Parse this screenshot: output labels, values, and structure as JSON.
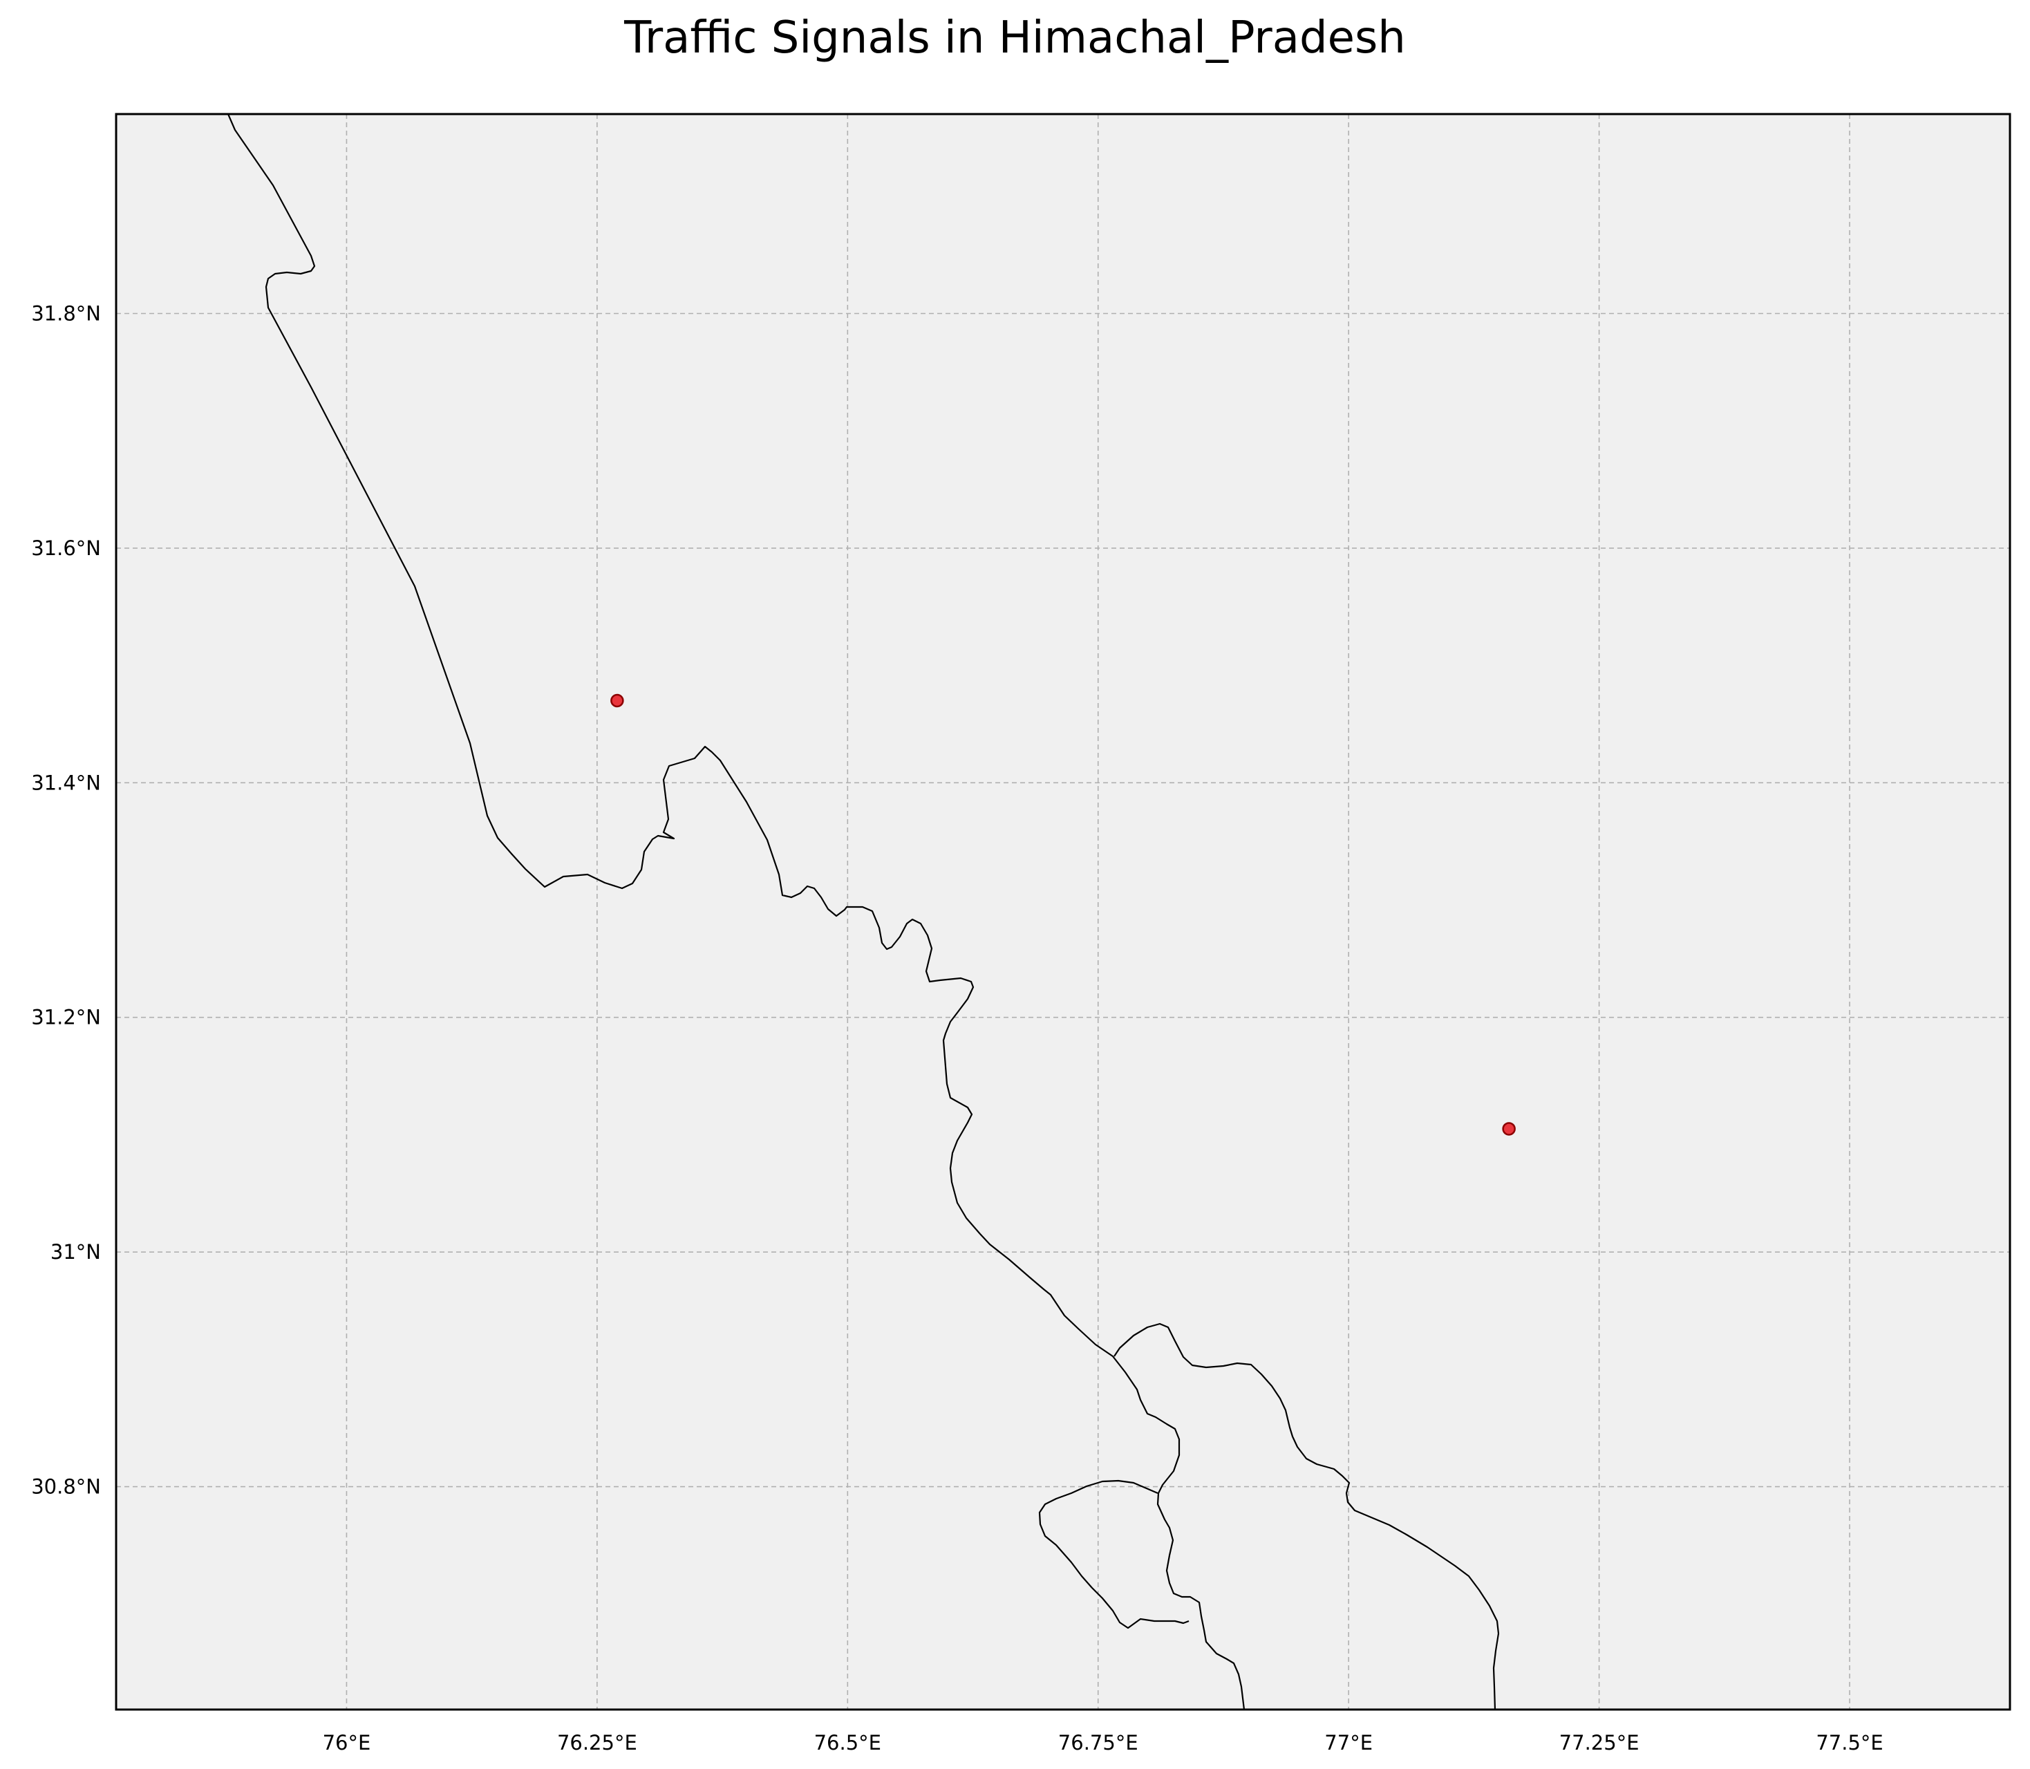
{
  "title": "Traffic Signals in Himachal_Pradesh",
  "map": {
    "extent": {
      "lon_min": 75.77,
      "lon_max": 77.66,
      "lat_min": 30.61,
      "lat_max": 31.97
    },
    "background_color": "#f0f0f0",
    "gridlines": true,
    "lon_ticks": [
      {
        "value": 76.0,
        "label": "76°E"
      },
      {
        "value": 76.25,
        "label": "76.25°E"
      },
      {
        "value": 76.5,
        "label": "76.5°E"
      },
      {
        "value": 76.75,
        "label": "76.75°E"
      },
      {
        "value": 77.0,
        "label": "77°E"
      },
      {
        "value": 77.25,
        "label": "77.25°E"
      },
      {
        "value": 77.5,
        "label": "77.5°E"
      }
    ],
    "lat_ticks": [
      {
        "value": 31.8,
        "label": "31.8°N"
      },
      {
        "value": 31.6,
        "label": "31.6°N"
      },
      {
        "value": 31.4,
        "label": "31.4°N"
      },
      {
        "value": 31.2,
        "label": "31.2°N"
      },
      {
        "value": 31.0,
        "label": "31°N"
      },
      {
        "value": 30.8,
        "label": "30.8°N"
      }
    ],
    "marker_color": "#e8141c",
    "points": [
      {
        "name": "traffic-signal-1",
        "lon": 76.27,
        "lat": 31.47
      },
      {
        "name": "traffic-signal-2",
        "lon": 77.16,
        "lat": 31.105
      }
    ]
  }
}
